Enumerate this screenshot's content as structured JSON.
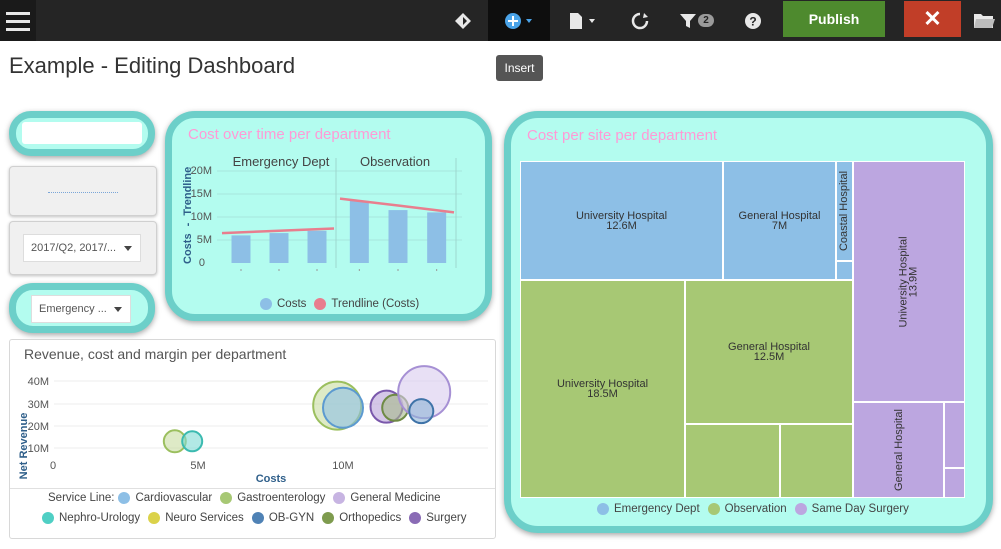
{
  "toolbar": {
    "publish_label": "Publish",
    "filter_count": "2",
    "icons": [
      "menu-icon",
      "diamond-icon",
      "add-icon",
      "page-icon",
      "refresh-icon",
      "filter-icon",
      "help-icon",
      "close-icon",
      "folder-icon"
    ],
    "colors": {
      "bar": "#252525",
      "publish": "#4e8a2e",
      "close": "#c13e28"
    }
  },
  "page": {
    "title": "Example - Editing Dashboard",
    "tooltip": "Insert"
  },
  "filters": {
    "period_value": "2017/Q2, 2017/...",
    "department_value": "Emergency ..."
  },
  "cost_over_time": {
    "title": "Cost over time per department",
    "ylabel_top": "Costs",
    "ylabel_sep": "-",
    "ylabel_bottom": "Trendline",
    "yticks": [
      "20M",
      "15M",
      "10M",
      "5M",
      "0"
    ],
    "panel1": "Emergency Dept",
    "panel2": "Observation",
    "legend": [
      "Costs",
      "Trendline (Costs)"
    ]
  },
  "revenue_chart": {
    "title": "Revenue, cost and margin per department",
    "ylabel": "Net Revenue",
    "xlabel": "Costs",
    "yticks": [
      "40M",
      "30M",
      "20M",
      "10M"
    ],
    "xticks": [
      "0",
      "5M",
      "10M"
    ],
    "legend_label": "Service Line:",
    "legend_items": [
      "Cardiovascular",
      "Gastroenterology",
      "General Medicine",
      "Nephro-Urology",
      "Neuro Services",
      "OB-GYN",
      "Orthopedics",
      "Surgery"
    ]
  },
  "treemap": {
    "title": "Cost per site per department",
    "tiles": {
      "t1_name": "University Hospital",
      "t1_value": "12.6M",
      "t2_name": "General Hospital",
      "t2_value": "7M",
      "t3_name": "Coastal Hospital",
      "t4_name": "University Hospital",
      "t4_value": "18.5M",
      "t5_name": "General Hospital",
      "t5_value": "12.5M",
      "t6_name": "University Hospital",
      "t6_value": "13.9M",
      "t7_name": "General Hospital"
    },
    "legend": [
      "Emergency Dept",
      "Observation",
      "Same Day Surgery"
    ]
  },
  "chart_data": [
    {
      "type": "bar",
      "title": "Cost over time per department",
      "ylabel": "Costs - Trendline",
      "ylim": [
        0,
        20000000
      ],
      "legend": "bottom",
      "series": [
        {
          "name": "Costs",
          "panel": "Emergency Dept",
          "values": [
            6000000,
            6500000,
            7000000
          ]
        },
        {
          "name": "Costs",
          "panel": "Observation",
          "values": [
            13500000,
            11500000,
            11000000
          ]
        },
        {
          "name": "Trendline (Costs)",
          "panel": "Emergency Dept",
          "values": [
            6500000,
            7000000,
            7500000
          ]
        },
        {
          "name": "Trendline (Costs)",
          "panel": "Observation",
          "values": [
            14000000,
            12500000,
            11000000
          ]
        }
      ]
    },
    {
      "type": "scatter",
      "title": "Revenue, cost and margin per department",
      "xlabel": "Costs",
      "ylabel": "Net Revenue",
      "xlim": [
        0,
        14000000
      ],
      "ylim": [
        8000000,
        40000000
      ],
      "points": [
        {
          "series": "Gastroenterology",
          "x": 4200000,
          "y": 13000000
        },
        {
          "series": "Nephro-Urology",
          "x": 4800000,
          "y": 13000000
        },
        {
          "series": "Gastroenterology",
          "x": 9800000,
          "y": 29000000
        },
        {
          "series": "Cardiovascular",
          "x": 10000000,
          "y": 28000000
        },
        {
          "series": "Surgery",
          "x": 11500000,
          "y": 28500000
        },
        {
          "series": "Orthopedics",
          "x": 11800000,
          "y": 28000000
        },
        {
          "series": "General Medicine",
          "x": 12800000,
          "y": 35000000
        },
        {
          "series": "OB-GYN",
          "x": 12700000,
          "y": 26500000
        }
      ]
    },
    {
      "type": "treemap",
      "title": "Cost per site per department",
      "legend": "bottom",
      "groups": [
        {
          "name": "Emergency Dept",
          "items": [
            {
              "label": "University Hospital",
              "value": 12600000
            },
            {
              "label": "General Hospital",
              "value": 7000000
            },
            {
              "label": "Coastal Hospital"
            }
          ]
        },
        {
          "name": "Observation",
          "items": [
            {
              "label": "University Hospital",
              "value": 18500000
            },
            {
              "label": "General Hospital",
              "value": 12500000
            }
          ]
        },
        {
          "name": "Same Day Surgery",
          "items": [
            {
              "label": "University Hospital",
              "value": 13900000
            },
            {
              "label": "General Hospital"
            }
          ]
        }
      ]
    }
  ]
}
